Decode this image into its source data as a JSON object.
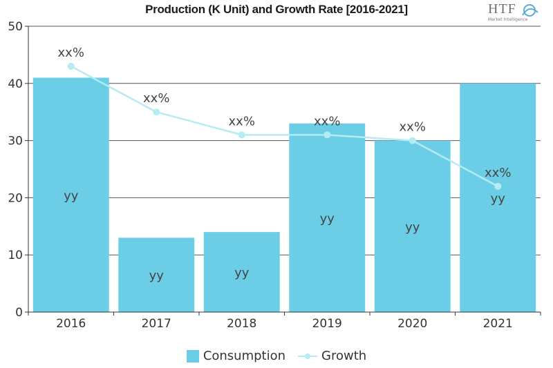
{
  "chart_data": {
    "type": "bar",
    "title": "Production (K Unit) and Growth Rate [2016-2021]",
    "categories": [
      "2016",
      "2017",
      "2018",
      "2019",
      "2020",
      "2021"
    ],
    "series": [
      {
        "name": "Consumption",
        "kind": "bar",
        "values": [
          41,
          13,
          14,
          33,
          30,
          40
        ],
        "labels": [
          "yy",
          "yy",
          "yy",
          "yy",
          "yy",
          "yy"
        ],
        "color": "#6bcde6"
      },
      {
        "name": "Growth",
        "kind": "line",
        "values": [
          43,
          35,
          31,
          31,
          30,
          22
        ],
        "labels": [
          "xx%",
          "xx%",
          "xx%",
          "xx%",
          "xx%",
          "xx%"
        ],
        "color": "#b5ecf3"
      }
    ],
    "ylim": [
      0,
      50
    ],
    "yticks": [
      "0",
      "10",
      "20",
      "30",
      "40",
      "50"
    ],
    "grid": true,
    "legend_position": "bottom-center"
  },
  "logo": {
    "brand": "HTF",
    "tagline": "Market Intelligence"
  },
  "legend": {
    "consumption": "Consumption",
    "growth": "Growth"
  }
}
